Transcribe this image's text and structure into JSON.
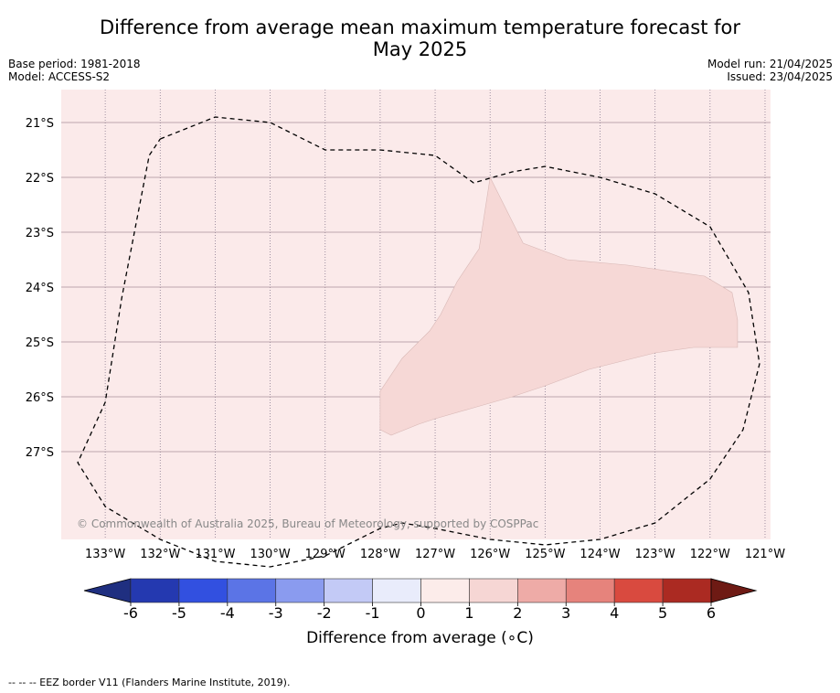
{
  "title_line1": "Difference from average mean maximum temperature forecast for",
  "title_line2": "May 2025",
  "meta": {
    "base_period": "Base period: 1981-2018",
    "model": "Model: ACCESS-S2",
    "model_run": "Model run: 21/04/2025",
    "issued": "Issued: 23/04/2025"
  },
  "copyright": "© Commonwealth of Australia 2025, Bureau of Meteorology, supported by COSPPac",
  "map": {
    "lon_range": [
      -133.8,
      -120.9
    ],
    "lat_range": [
      -20.4,
      -28.6
    ],
    "lon_ticks": [
      {
        "value": -133,
        "label": "133°W"
      },
      {
        "value": -132,
        "label": "132°W"
      },
      {
        "value": -131,
        "label": "131°W"
      },
      {
        "value": -130,
        "label": "130°W"
      },
      {
        "value": -129,
        "label": "129°W"
      },
      {
        "value": -128,
        "label": "128°W"
      },
      {
        "value": -127,
        "label": "127°W"
      },
      {
        "value": -126,
        "label": "126°W"
      },
      {
        "value": -125,
        "label": "125°W"
      },
      {
        "value": -124,
        "label": "124°W"
      },
      {
        "value": -123,
        "label": "123°W"
      },
      {
        "value": -122,
        "label": "122°W"
      },
      {
        "value": -121,
        "label": "121°W"
      }
    ],
    "lat_ticks": [
      {
        "value": -21,
        "label": "21°S"
      },
      {
        "value": -22,
        "label": "22°S"
      },
      {
        "value": -23,
        "label": "23°S"
      },
      {
        "value": -24,
        "label": "24°S"
      },
      {
        "value": -25,
        "label": "25°S"
      },
      {
        "value": -26,
        "label": "26°S"
      },
      {
        "value": -27,
        "label": "27°S"
      }
    ],
    "background_color": "#fbeaea",
    "anomaly_region": {
      "color": "#f6d8d6",
      "category": "1 to 2",
      "points": [
        [
          -126.0,
          -22.0
        ],
        [
          -125.4,
          -23.2
        ],
        [
          -124.6,
          -23.5
        ],
        [
          -123.5,
          -23.6
        ],
        [
          -122.1,
          -23.8
        ],
        [
          -121.6,
          -24.1
        ],
        [
          -121.5,
          -24.6
        ],
        [
          -121.5,
          -25.1
        ],
        [
          -122.3,
          -25.1
        ],
        [
          -123.0,
          -25.2
        ],
        [
          -124.2,
          -25.5
        ],
        [
          -125.0,
          -25.8
        ],
        [
          -125.6,
          -26.0
        ],
        [
          -126.3,
          -26.2
        ],
        [
          -127.0,
          -26.4
        ],
        [
          -127.3,
          -26.5
        ],
        [
          -127.8,
          -26.7
        ],
        [
          -128.0,
          -26.6
        ],
        [
          -128.0,
          -25.9
        ],
        [
          -127.6,
          -25.3
        ],
        [
          -127.1,
          -24.8
        ],
        [
          -126.9,
          -24.5
        ],
        [
          -126.6,
          -23.9
        ],
        [
          -126.2,
          -23.3
        ],
        [
          -126.0,
          -22.0
        ]
      ]
    },
    "eez_border": [
      [
        -132.0,
        -21.3
      ],
      [
        -131.0,
        -20.9
      ],
      [
        -130.0,
        -21.0
      ],
      [
        -129.0,
        -21.5
      ],
      [
        -128.0,
        -21.5
      ],
      [
        -127.0,
        -21.6
      ],
      [
        -126.3,
        -22.1
      ],
      [
        -125.6,
        -21.9
      ],
      [
        -125.0,
        -21.8
      ],
      [
        -124.0,
        -22.0
      ],
      [
        -123.0,
        -22.3
      ],
      [
        -122.0,
        -22.9
      ],
      [
        -121.3,
        -24.1
      ],
      [
        -121.1,
        -25.4
      ],
      [
        -121.4,
        -26.6
      ],
      [
        -122.0,
        -27.5
      ],
      [
        -123.0,
        -28.3
      ],
      [
        -124.0,
        -28.6
      ],
      [
        -125.0,
        -28.7
      ],
      [
        -126.0,
        -28.6
      ],
      [
        -127.0,
        -28.4
      ],
      [
        -127.6,
        -28.3
      ],
      [
        -128.0,
        -28.4
      ],
      [
        -129.0,
        -28.9
      ],
      [
        -130.0,
        -29.1
      ],
      [
        -131.0,
        -29.0
      ],
      [
        -132.0,
        -28.6
      ],
      [
        -133.0,
        -28.0
      ],
      [
        -133.5,
        -27.2
      ],
      [
        -133.0,
        -26.1
      ],
      [
        -132.7,
        -24.2
      ],
      [
        -132.2,
        -21.6
      ],
      [
        -132.0,
        -21.3
      ]
    ]
  },
  "colorbar": {
    "label": "Difference from average (∘C)",
    "ticks": [
      "-6",
      "-5",
      "-4",
      "-3",
      "-2",
      "-1",
      "0",
      "1",
      "2",
      "3",
      "4",
      "5",
      "6"
    ],
    "colors": [
      "#1f2f80",
      "#2439b0",
      "#3250e0",
      "#5b74e6",
      "#8a9bef",
      "#c3caf6",
      "#e9ecfb",
      "#fcecea",
      "#f6d6d4",
      "#eeaba7",
      "#e6837c",
      "#d94a3f",
      "#ab2a22",
      "#6e1a14"
    ]
  },
  "footer": "-- -- -- EEZ border V11 (Flanders Marine Institute, 2019)."
}
